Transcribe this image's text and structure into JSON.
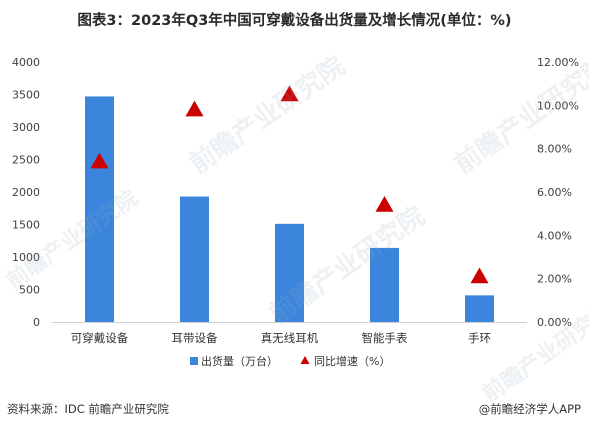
{
  "title": "图表3：2023年Q3年中国可穿戴设备出货量及增长情况(单位：%)",
  "source": "资料来源：IDC 前瞻产业研究院",
  "credit": "@前瞻经济学人APP",
  "watermark": "前瞻产业研究院",
  "chart_data": {
    "type": "bar",
    "categories": [
      "可穿戴设备",
      "耳带设备",
      "真无线耳机",
      "智能手表",
      "手环"
    ],
    "series": [
      {
        "name": "出货量（万台）",
        "type": "bar",
        "axis": "left",
        "values": [
          3470,
          1930,
          1510,
          1140,
          410
        ]
      },
      {
        "name": "同比增速（%）",
        "type": "scatter",
        "marker": "triangle",
        "axis": "right",
        "values": [
          7.4,
          9.8,
          10.5,
          5.4,
          2.1
        ]
      }
    ],
    "y_left": {
      "ylim": [
        0,
        4000
      ],
      "ticks": [
        0,
        500,
        1000,
        1500,
        2000,
        2500,
        3000,
        3500,
        4000
      ]
    },
    "y_right": {
      "ylim": [
        0,
        12
      ],
      "ticks": [
        0,
        2,
        4,
        6,
        8,
        10,
        12
      ],
      "tick_labels": [
        "0.00%",
        "2.00%",
        "4.00%",
        "6.00%",
        "8.00%",
        "10.00%",
        "12.00%"
      ]
    },
    "legend": "bottom",
    "grid": false,
    "colors": {
      "bar": "#3b86dc",
      "marker": "#cc0000"
    }
  }
}
